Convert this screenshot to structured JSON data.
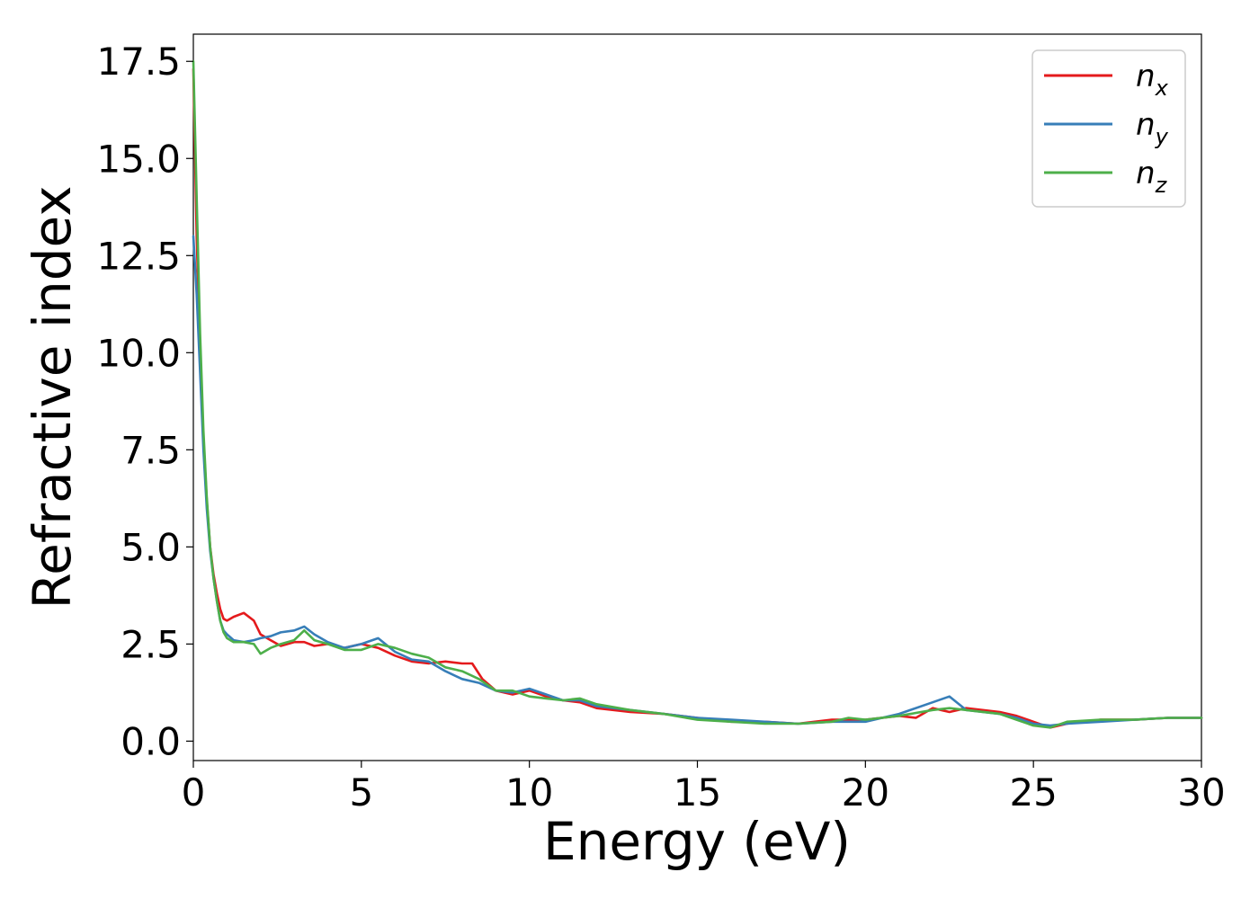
{
  "chart_data": {
    "type": "line",
    "xlabel": "Energy (eV)",
    "ylabel": "Refractive index",
    "xlim": [
      0,
      30
    ],
    "ylim": [
      -0.5,
      18.2
    ],
    "xticks": [
      "0",
      "5",
      "10",
      "15",
      "20",
      "25",
      "30"
    ],
    "yticks": [
      "0.0",
      "2.5",
      "5.0",
      "7.5",
      "10.0",
      "12.5",
      "15.0",
      "17.5"
    ],
    "grid": false,
    "legend_position": "top-right",
    "series": [
      {
        "name": "n_x",
        "label_base": "n",
        "label_sub": "x",
        "color": "#e41a1c",
        "x": [
          0,
          0.1,
          0.2,
          0.3,
          0.4,
          0.5,
          0.6,
          0.7,
          0.8,
          0.9,
          1.0,
          1.2,
          1.5,
          1.8,
          2.0,
          2.3,
          2.6,
          3.0,
          3.3,
          3.6,
          4.0,
          4.5,
          5.0,
          5.5,
          6.0,
          6.5,
          7.0,
          7.5,
          8.0,
          8.3,
          8.6,
          9.0,
          9.5,
          10.0,
          10.5,
          11.0,
          11.5,
          12.0,
          13.0,
          14.0,
          15.0,
          16.0,
          17.0,
          18.0,
          19.0,
          20.0,
          21.0,
          21.5,
          22.0,
          22.5,
          23.0,
          24.0,
          24.5,
          25.0,
          25.5,
          26.0,
          27.0,
          28.0,
          29.0,
          30.0
        ],
        "y": [
          17.3,
          13.0,
          10.0,
          7.8,
          6.2,
          5.0,
          4.3,
          3.8,
          3.4,
          3.15,
          3.1,
          3.2,
          3.3,
          3.1,
          2.75,
          2.6,
          2.45,
          2.55,
          2.55,
          2.45,
          2.5,
          2.4,
          2.5,
          2.4,
          2.2,
          2.05,
          2.0,
          2.05,
          2.0,
          2.0,
          1.6,
          1.3,
          1.2,
          1.3,
          1.15,
          1.05,
          1.0,
          0.85,
          0.75,
          0.7,
          0.6,
          0.5,
          0.5,
          0.45,
          0.55,
          0.55,
          0.65,
          0.6,
          0.85,
          0.75,
          0.85,
          0.75,
          0.65,
          0.5,
          0.35,
          0.45,
          0.55,
          0.55,
          0.6,
          0.6
        ]
      },
      {
        "name": "n_y",
        "label_base": "n",
        "label_sub": "y",
        "color": "#377eb8",
        "x": [
          0,
          0.1,
          0.2,
          0.3,
          0.4,
          0.5,
          0.6,
          0.7,
          0.8,
          0.9,
          1.0,
          1.2,
          1.5,
          1.8,
          2.0,
          2.3,
          2.6,
          3.0,
          3.3,
          3.6,
          4.0,
          4.5,
          5.0,
          5.5,
          6.0,
          6.5,
          7.0,
          7.5,
          8.0,
          8.5,
          9.0,
          9.5,
          10.0,
          10.5,
          11.0,
          11.5,
          12.0,
          13.0,
          14.0,
          15.0,
          16.0,
          17.0,
          18.0,
          19.0,
          20.0,
          21.0,
          22.0,
          22.5,
          23.0,
          24.0,
          24.5,
          25.0,
          25.5,
          26.0,
          27.0,
          28.0,
          29.0,
          30.0
        ],
        "y": [
          13.0,
          11.5,
          9.5,
          7.5,
          6.0,
          4.9,
          4.2,
          3.6,
          3.1,
          2.85,
          2.75,
          2.6,
          2.55,
          2.6,
          2.65,
          2.7,
          2.8,
          2.85,
          2.95,
          2.75,
          2.55,
          2.4,
          2.5,
          2.65,
          2.3,
          2.1,
          2.05,
          1.8,
          1.6,
          1.5,
          1.3,
          1.25,
          1.35,
          1.2,
          1.05,
          1.05,
          0.9,
          0.8,
          0.7,
          0.6,
          0.55,
          0.5,
          0.45,
          0.5,
          0.5,
          0.7,
          1.0,
          1.15,
          0.8,
          0.7,
          0.6,
          0.45,
          0.4,
          0.45,
          0.5,
          0.55,
          0.6,
          0.6
        ]
      },
      {
        "name": "n_z",
        "label_base": "n",
        "label_sub": "z",
        "color": "#4daf4a",
        "x": [
          0,
          0.1,
          0.2,
          0.3,
          0.4,
          0.5,
          0.6,
          0.7,
          0.8,
          0.9,
          1.0,
          1.2,
          1.5,
          1.8,
          2.0,
          2.3,
          2.6,
          3.0,
          3.3,
          3.6,
          4.0,
          4.5,
          5.0,
          5.5,
          6.0,
          6.5,
          7.0,
          7.5,
          8.0,
          8.5,
          9.0,
          9.5,
          10.0,
          10.5,
          11.0,
          11.5,
          12.0,
          13.0,
          14.0,
          15.0,
          16.0,
          17.0,
          18.0,
          19.0,
          19.5,
          20.0,
          21.0,
          22.0,
          22.5,
          23.0,
          24.0,
          24.5,
          25.0,
          25.5,
          26.0,
          27.0,
          28.0,
          29.0,
          30.0
        ],
        "y": [
          17.5,
          14.0,
          10.5,
          8.0,
          6.3,
          5.0,
          4.2,
          3.6,
          3.1,
          2.8,
          2.65,
          2.55,
          2.55,
          2.5,
          2.25,
          2.4,
          2.5,
          2.6,
          2.85,
          2.6,
          2.5,
          2.35,
          2.35,
          2.5,
          2.4,
          2.25,
          2.15,
          1.9,
          1.8,
          1.6,
          1.3,
          1.3,
          1.15,
          1.1,
          1.05,
          1.1,
          0.95,
          0.8,
          0.7,
          0.55,
          0.5,
          0.45,
          0.45,
          0.5,
          0.6,
          0.55,
          0.65,
          0.8,
          0.85,
          0.8,
          0.7,
          0.55,
          0.4,
          0.35,
          0.5,
          0.55,
          0.55,
          0.6,
          0.6
        ]
      }
    ]
  }
}
